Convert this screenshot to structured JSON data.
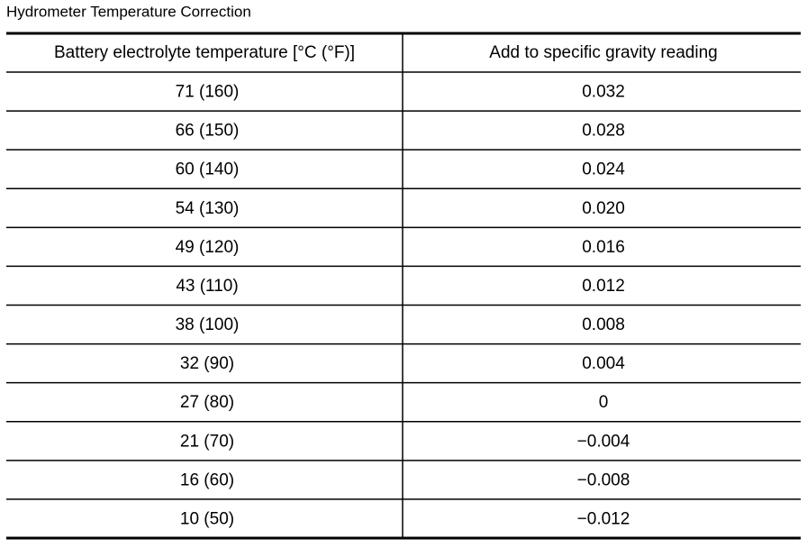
{
  "title": "Hydrometer Temperature Correction",
  "table": {
    "header": [
      "Battery electrolyte temperature [°C (°F)]",
      "Add to specific gravity reading"
    ],
    "rows": [
      [
        "71 (160)",
        "0.032"
      ],
      [
        "66 (150)",
        "0.028"
      ],
      [
        "60 (140)",
        "0.024"
      ],
      [
        "54 (130)",
        "0.020"
      ],
      [
        "49 (120)",
        "0.016"
      ],
      [
        "43 (110)",
        "0.012"
      ],
      [
        "38 (100)",
        "0.008"
      ],
      [
        "32 (90)",
        "0.004"
      ],
      [
        "27 (80)",
        "0"
      ],
      [
        "21 (70)",
        "−0.004"
      ],
      [
        "16 (60)",
        "−0.008"
      ],
      [
        "10 (50)",
        "−0.012"
      ]
    ]
  }
}
